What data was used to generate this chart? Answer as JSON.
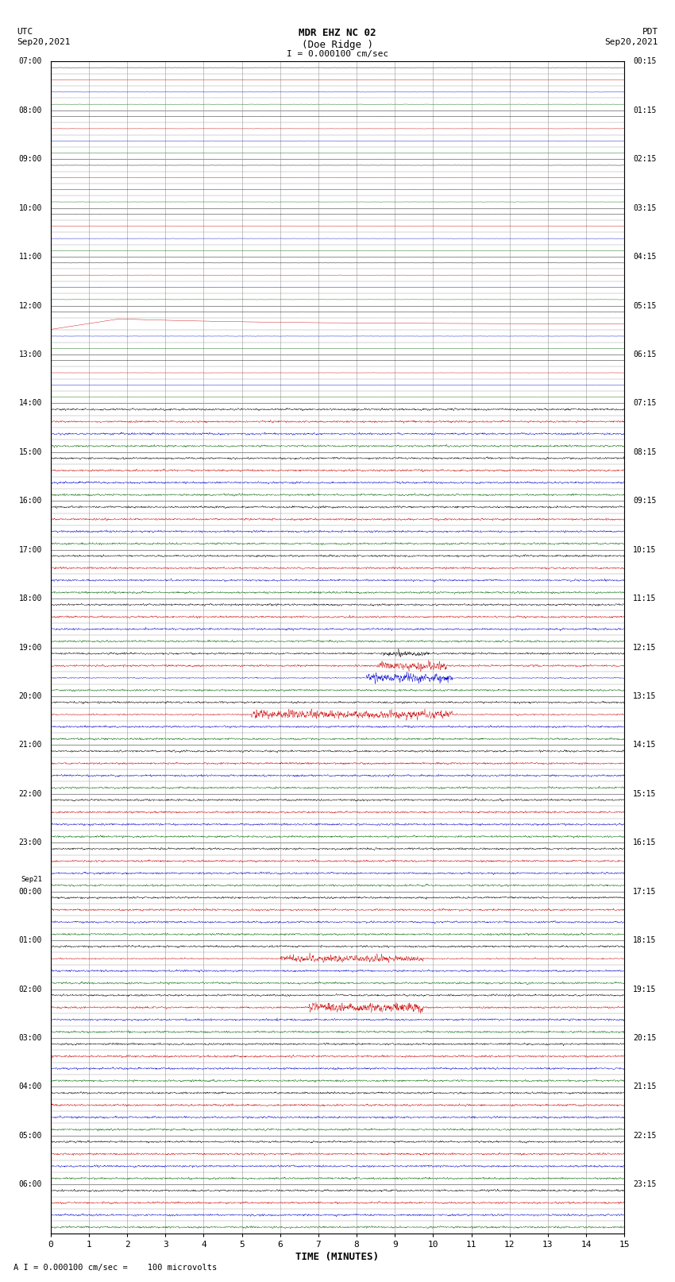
{
  "title_line1": "MDR EHZ NC 02",
  "title_line2": "(Doe Ridge )",
  "scale_label": "I = 0.000100 cm/sec",
  "utc_label": "UTC",
  "pdt_label": "PDT",
  "date_left": "Sep20,2021",
  "date_right": "Sep20,2021",
  "bottom_note": "A I = 0.000100 cm/sec =    100 microvolts",
  "xlabel": "TIME (MINUTES)",
  "left_times_with_pos": [
    [
      "07:00",
      0
    ],
    [
      "08:00",
      4
    ],
    [
      "09:00",
      8
    ],
    [
      "10:00",
      12
    ],
    [
      "11:00",
      16
    ],
    [
      "12:00",
      20
    ],
    [
      "13:00",
      24
    ],
    [
      "14:00",
      28
    ],
    [
      "15:00",
      32
    ],
    [
      "16:00",
      36
    ],
    [
      "17:00",
      40
    ],
    [
      "18:00",
      44
    ],
    [
      "19:00",
      48
    ],
    [
      "20:00",
      52
    ],
    [
      "21:00",
      56
    ],
    [
      "22:00",
      60
    ],
    [
      "23:00",
      64
    ],
    [
      "Sep21",
      67
    ],
    [
      "00:00",
      68
    ],
    [
      "01:00",
      72
    ],
    [
      "02:00",
      76
    ],
    [
      "03:00",
      80
    ],
    [
      "04:00",
      84
    ],
    [
      "05:00",
      88
    ],
    [
      "06:00",
      92
    ]
  ],
  "right_times_with_pos": [
    [
      "00:15",
      0
    ],
    [
      "01:15",
      4
    ],
    [
      "02:15",
      8
    ],
    [
      "03:15",
      12
    ],
    [
      "04:15",
      16
    ],
    [
      "05:15",
      20
    ],
    [
      "06:15",
      24
    ],
    [
      "07:15",
      28
    ],
    [
      "08:15",
      32
    ],
    [
      "09:15",
      36
    ],
    [
      "10:15",
      40
    ],
    [
      "11:15",
      44
    ],
    [
      "12:15",
      48
    ],
    [
      "13:15",
      52
    ],
    [
      "14:15",
      56
    ],
    [
      "15:15",
      60
    ],
    [
      "16:15",
      64
    ],
    [
      "17:15",
      68
    ],
    [
      "18:15",
      72
    ],
    [
      "19:15",
      76
    ],
    [
      "20:15",
      80
    ],
    [
      "21:15",
      84
    ],
    [
      "22:15",
      88
    ],
    [
      "23:15",
      92
    ]
  ],
  "num_traces": 96,
  "bg_color": "#ffffff",
  "grid_color": "#999999",
  "trace_colors_cycle": [
    "#000000",
    "#cc0000",
    "#0000cc",
    "#006600"
  ],
  "x_ticks": [
    0,
    1,
    2,
    3,
    4,
    5,
    6,
    7,
    8,
    9,
    10,
    11,
    12,
    13,
    14,
    15
  ]
}
